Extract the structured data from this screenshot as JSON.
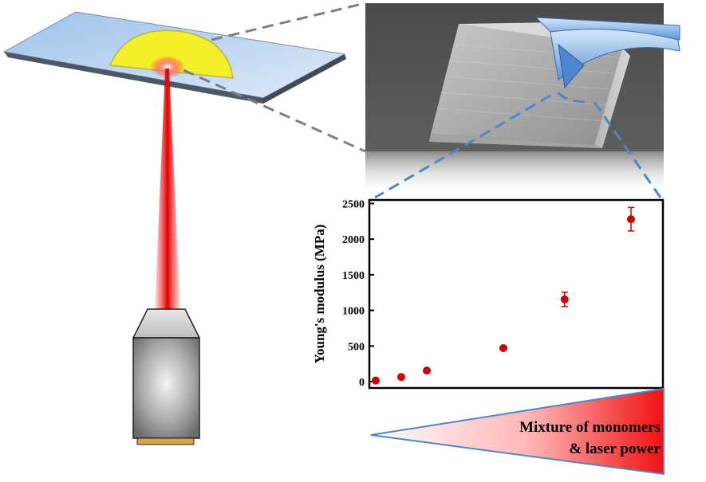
{
  "chart_data": {
    "type": "scatter",
    "title": "",
    "xlabel": "",
    "ylabel": "Young's modulus (MPa)",
    "ylim": [
      0,
      2550
    ],
    "yticks": [
      0,
      500,
      1000,
      1500,
      2000,
      2500
    ],
    "x": [
      1,
      2,
      3,
      4,
      5,
      6
    ],
    "series": [
      {
        "values": [
          15,
          65,
          155,
          470,
          1155,
          2280
        ],
        "errors": [
          0,
          0,
          0,
          0,
          100,
          165
        ]
      }
    ],
    "colors": {
      "marker": "#cc0000",
      "axis": "#000000"
    },
    "grid": false
  },
  "wedge": {
    "line1": "Mixture of monomers",
    "line2": "& laser power"
  }
}
